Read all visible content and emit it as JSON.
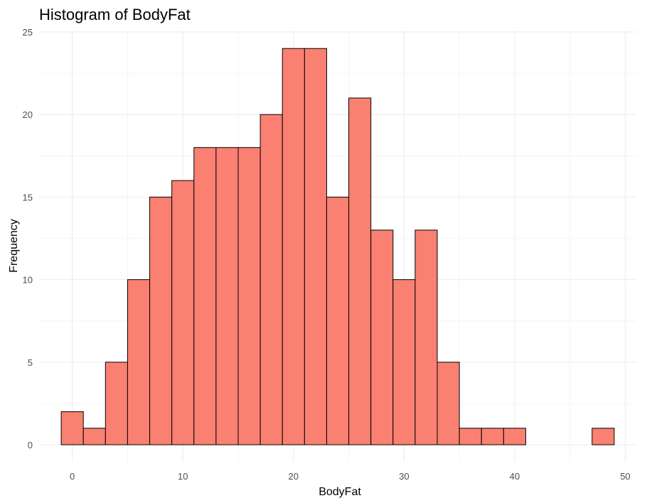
{
  "chart_data": {
    "type": "bar",
    "title": "Histogram of BodyFat",
    "xlabel": "BodyFat",
    "ylabel": "Frequency",
    "bin_width": 2,
    "bin_centers": [
      0,
      2,
      4,
      6,
      8,
      10,
      12,
      14,
      16,
      18,
      20,
      22,
      24,
      26,
      28,
      30,
      32,
      34,
      36,
      38,
      40,
      42,
      44,
      46,
      48
    ],
    "values": [
      2,
      1,
      5,
      10,
      15,
      16,
      18,
      18,
      18,
      20,
      24,
      24,
      15,
      21,
      13,
      10,
      13,
      5,
      1,
      1,
      1,
      0,
      0,
      0,
      1
    ],
    "xlim": [
      -3,
      51
    ],
    "ylim": [
      0,
      25
    ],
    "x_ticks": [
      0,
      10,
      20,
      30,
      40,
      50
    ],
    "y_ticks": [
      0,
      5,
      10,
      15,
      20,
      25
    ],
    "grid": true,
    "legend": "none",
    "fill_color": "#fa8072",
    "outline_color": "#000000"
  }
}
